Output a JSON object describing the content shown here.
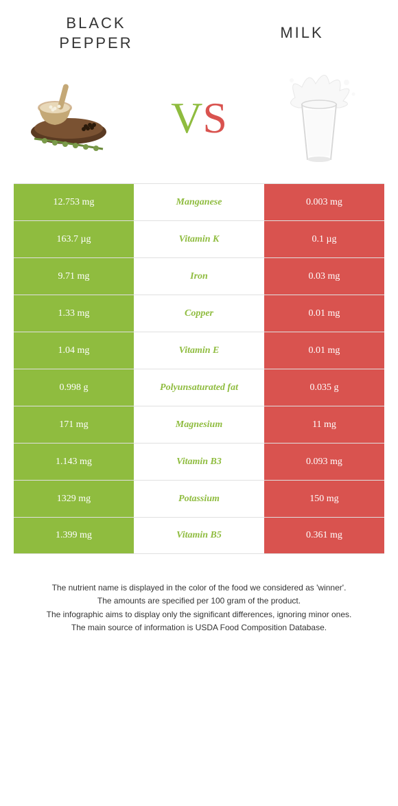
{
  "header": {
    "left_title": "BLACK PEPPER",
    "right_title": "MILK",
    "vs_v": "V",
    "vs_s": "S"
  },
  "colors": {
    "green": "#8fbc3f",
    "red": "#d9534f",
    "row_border": "#e0e0e0",
    "text_dark": "#333333",
    "white": "#ffffff"
  },
  "nutrients": [
    {
      "name": "Manganese",
      "left": "12.753 mg",
      "right": "0.003 mg",
      "winner": "left"
    },
    {
      "name": "Vitamin K",
      "left": "163.7 µg",
      "right": "0.1 µg",
      "winner": "left"
    },
    {
      "name": "Iron",
      "left": "9.71 mg",
      "right": "0.03 mg",
      "winner": "left"
    },
    {
      "name": "Copper",
      "left": "1.33 mg",
      "right": "0.01 mg",
      "winner": "left"
    },
    {
      "name": "Vitamin E",
      "left": "1.04 mg",
      "right": "0.01 mg",
      "winner": "left"
    },
    {
      "name": "Polyunsaturated fat",
      "left": "0.998 g",
      "right": "0.035 g",
      "winner": "left"
    },
    {
      "name": "Magnesium",
      "left": "171 mg",
      "right": "11 mg",
      "winner": "left"
    },
    {
      "name": "Vitamin B3",
      "left": "1.143 mg",
      "right": "0.093 mg",
      "winner": "left"
    },
    {
      "name": "Potassium",
      "left": "1329 mg",
      "right": "150 mg",
      "winner": "left"
    },
    {
      "name": "Vitamin B5",
      "left": "1.399 mg",
      "right": "0.361 mg",
      "winner": "left"
    }
  ],
  "footnotes": [
    "The nutrient name is displayed in the color of the food we considered as 'winner'.",
    "The amounts are specified per 100 gram of the product.",
    "The infographic aims to display only the significant differences, ignoring minor ones.",
    "The main source of information is USDA Food Composition Database."
  ]
}
